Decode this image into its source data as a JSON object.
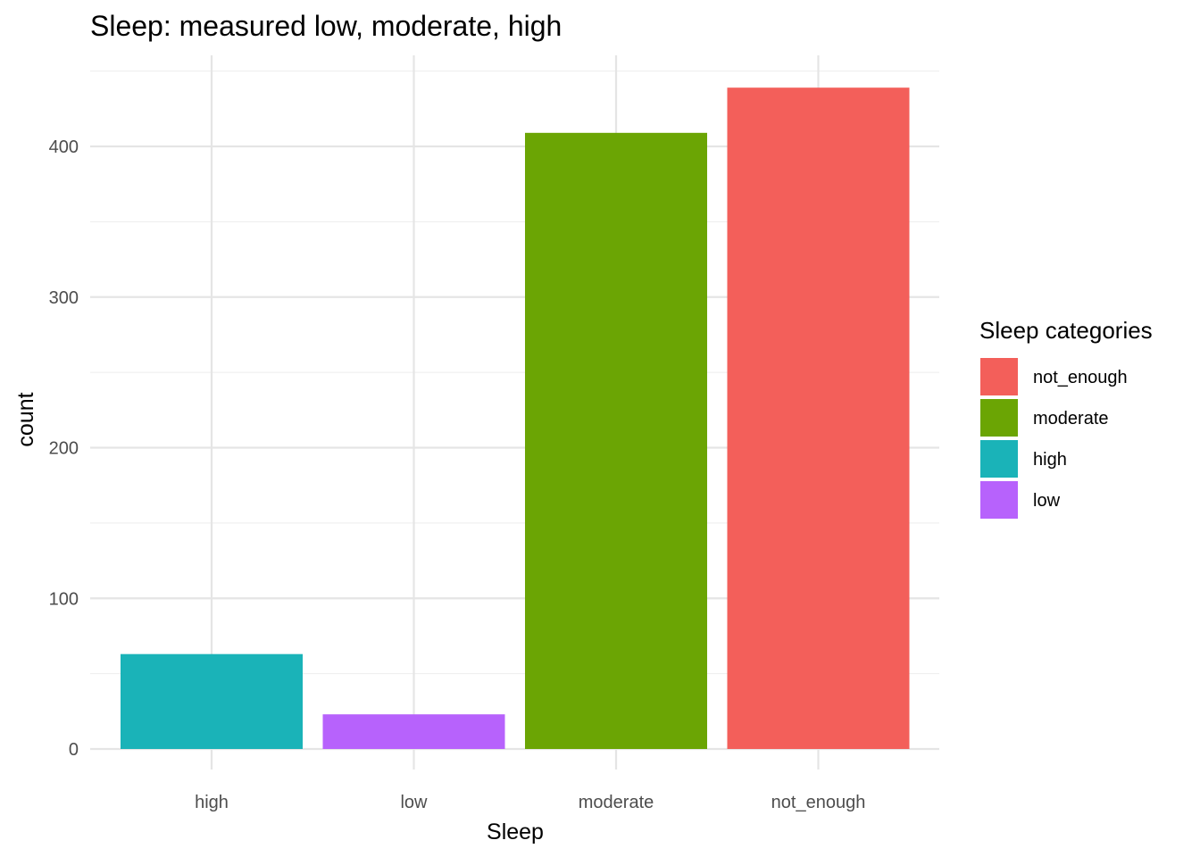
{
  "chart_data": {
    "type": "bar",
    "title": "Sleep: measured low, moderate, high",
    "xlabel": "Sleep",
    "ylabel": "count",
    "categories": [
      "high",
      "low",
      "moderate",
      "not_enough"
    ],
    "values": [
      63,
      23,
      409,
      439
    ],
    "bar_colors": [
      "#1AB3B8",
      "#B762FC",
      "#6BA504",
      "#F35F5A"
    ],
    "ylim": [
      0,
      453
    ],
    "y_ticks": [
      0,
      100,
      200,
      300,
      400
    ],
    "y_tick_labels": [
      "0",
      "100",
      "200",
      "300",
      "400"
    ],
    "grid": true,
    "legend": {
      "title": "Sleep categories",
      "placement": "right",
      "entries": [
        {
          "label": "not_enough",
          "color": "#F35F5A"
        },
        {
          "label": "moderate",
          "color": "#6BA504"
        },
        {
          "label": "high",
          "color": "#1AB3B8"
        },
        {
          "label": "low",
          "color": "#B762FC"
        }
      ]
    }
  }
}
